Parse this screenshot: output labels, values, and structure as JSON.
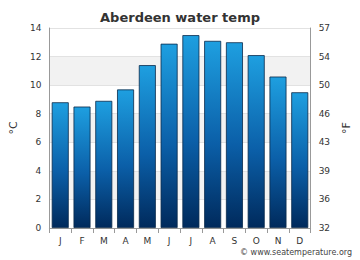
{
  "chart_data": {
    "type": "bar",
    "title": "Aberdeen water temp",
    "categories": [
      "J",
      "F",
      "M",
      "A",
      "M",
      "J",
      "J",
      "A",
      "S",
      "O",
      "N",
      "D"
    ],
    "values": [
      8.8,
      8.5,
      8.9,
      9.7,
      11.4,
      12.9,
      13.5,
      13.1,
      13.0,
      12.1,
      10.6,
      9.5
    ],
    "color": "#1e9fe0",
    "y_label": "°C",
    "y2_label": "°F",
    "ylim": [
      0,
      14
    ],
    "yticks": [
      0,
      2,
      4,
      6,
      8,
      10,
      12,
      14
    ],
    "y2lim": [
      32,
      57.2
    ],
    "y2ticks": [
      32,
      {
        "value": 35.6,
        "label": "36"
      },
      {
        "value": 39.2,
        "label": "39"
      },
      {
        "value": 42.8,
        "label": "43"
      },
      {
        "value": 46.4,
        "label": "46"
      },
      50,
      {
        "value": 53.6,
        "label": "54"
      },
      {
        "value": 57.2,
        "label": "57"
      }
    ],
    "annotation": "© www.seatemperature.org",
    "grid": true
  }
}
